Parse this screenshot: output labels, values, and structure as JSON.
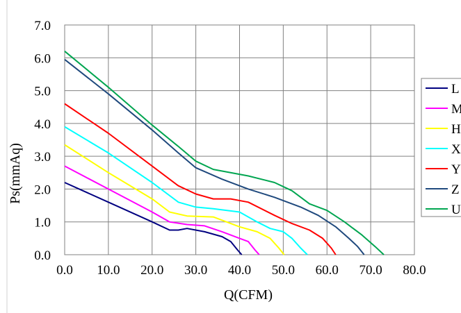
{
  "chart_data": {
    "type": "line",
    "title": "",
    "xlabel": "Q(CFM)",
    "ylabel": "Ps(mmAq)",
    "xlim": [
      0,
      80
    ],
    "ylim": [
      0,
      7
    ],
    "x_ticks": [
      "0.0",
      "10.0",
      "20.0",
      "30.0",
      "40.0",
      "50.0",
      "60.0",
      "70.0",
      "80.0"
    ],
    "y_ticks": [
      "0.0",
      "1.0",
      "2.0",
      "3.0",
      "4.0",
      "5.0",
      "6.0",
      "7.0"
    ],
    "grid": true,
    "legend_position": "right",
    "series": [
      {
        "name": "L",
        "color": "#000080",
        "points": [
          [
            0,
            2.2
          ],
          [
            10,
            1.6
          ],
          [
            20,
            1.0
          ],
          [
            24,
            0.75
          ],
          [
            26,
            0.75
          ],
          [
            28,
            0.8
          ],
          [
            32,
            0.7
          ],
          [
            36,
            0.55
          ],
          [
            38,
            0.4
          ],
          [
            39.5,
            0.15
          ],
          [
            40.5,
            0.0
          ]
        ]
      },
      {
        "name": "M",
        "color": "#ff00ff",
        "points": [
          [
            0,
            2.7
          ],
          [
            10,
            2.0
          ],
          [
            20,
            1.3
          ],
          [
            24,
            1.0
          ],
          [
            28,
            0.92
          ],
          [
            32,
            0.88
          ],
          [
            36,
            0.7
          ],
          [
            40,
            0.5
          ],
          [
            42,
            0.4
          ],
          [
            43.5,
            0.15
          ],
          [
            44.5,
            0.0
          ]
        ]
      },
      {
        "name": "H",
        "color": "#ffff00",
        "points": [
          [
            0,
            3.35
          ],
          [
            10,
            2.5
          ],
          [
            20,
            1.7
          ],
          [
            24,
            1.3
          ],
          [
            28,
            1.18
          ],
          [
            34,
            1.15
          ],
          [
            40,
            0.85
          ],
          [
            44,
            0.7
          ],
          [
            47,
            0.5
          ],
          [
            49,
            0.2
          ],
          [
            50.2,
            0.0
          ]
        ]
      },
      {
        "name": "X",
        "color": "#00ffff",
        "points": [
          [
            0,
            3.9
          ],
          [
            10,
            3.1
          ],
          [
            20,
            2.2
          ],
          [
            26,
            1.6
          ],
          [
            30,
            1.45
          ],
          [
            34,
            1.4
          ],
          [
            40,
            1.3
          ],
          [
            44,
            1.0
          ],
          [
            47,
            0.8
          ],
          [
            50,
            0.7
          ],
          [
            52,
            0.5
          ],
          [
            54,
            0.2
          ],
          [
            55.5,
            0.0
          ]
        ]
      },
      {
        "name": "Y",
        "color": "#ff0000",
        "points": [
          [
            0,
            4.6
          ],
          [
            10,
            3.7
          ],
          [
            20,
            2.7
          ],
          [
            26,
            2.1
          ],
          [
            30,
            1.85
          ],
          [
            34,
            1.7
          ],
          [
            38,
            1.7
          ],
          [
            42,
            1.6
          ],
          [
            48,
            1.2
          ],
          [
            52,
            0.95
          ],
          [
            56,
            0.75
          ],
          [
            59,
            0.5
          ],
          [
            61,
            0.2
          ],
          [
            62,
            0.0
          ]
        ]
      },
      {
        "name": "Z",
        "color": "#1f497d",
        "points": [
          [
            0,
            5.95
          ],
          [
            10,
            4.9
          ],
          [
            20,
            3.8
          ],
          [
            26,
            3.1
          ],
          [
            30,
            2.65
          ],
          [
            36,
            2.3
          ],
          [
            42,
            2.0
          ],
          [
            48,
            1.75
          ],
          [
            54,
            1.45
          ],
          [
            58,
            1.2
          ],
          [
            62,
            0.85
          ],
          [
            65,
            0.5
          ],
          [
            67,
            0.25
          ],
          [
            68.5,
            0.0
          ]
        ]
      },
      {
        "name": "U",
        "color": "#00a550",
        "points": [
          [
            0,
            6.2
          ],
          [
            10,
            5.1
          ],
          [
            20,
            3.95
          ],
          [
            26,
            3.3
          ],
          [
            30,
            2.85
          ],
          [
            34,
            2.6
          ],
          [
            42,
            2.4
          ],
          [
            48,
            2.2
          ],
          [
            52,
            1.95
          ],
          [
            56,
            1.55
          ],
          [
            60,
            1.35
          ],
          [
            64,
            1.0
          ],
          [
            68,
            0.6
          ],
          [
            71,
            0.25
          ],
          [
            73,
            0.0
          ]
        ]
      }
    ]
  }
}
